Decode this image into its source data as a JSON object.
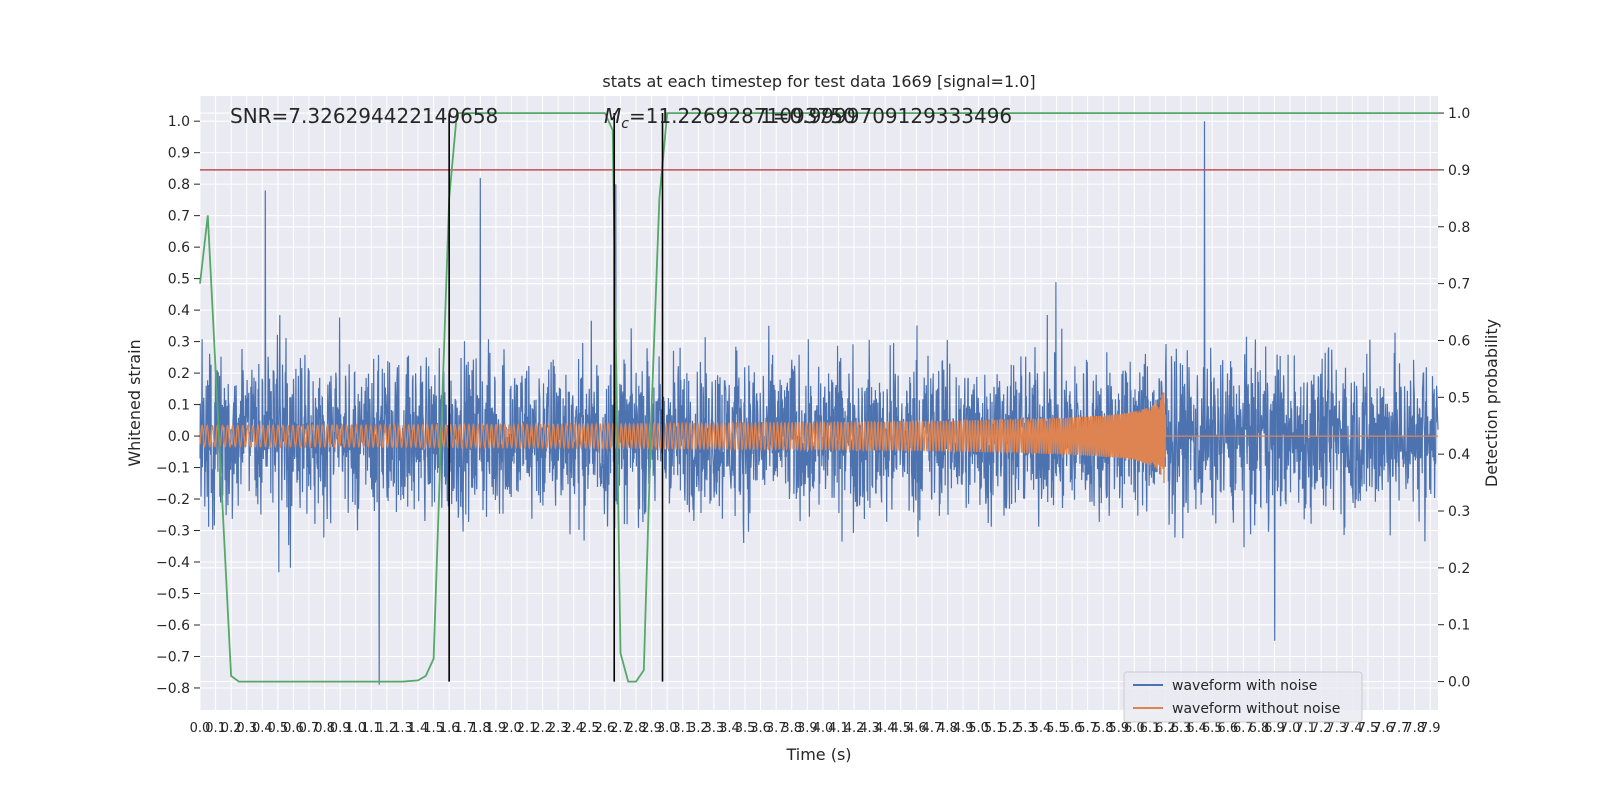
{
  "chart_data": {
    "type": "line",
    "title": "stats at each timestep for test data 1669 [signal=1.0]",
    "xlabel": "Time (s)",
    "ylabel": "Whitened strain",
    "y2label": "Detection probability",
    "xlim": [
      0.0,
      7.95
    ],
    "ylim": [
      -0.87,
      1.08
    ],
    "y2lim": [
      -0.05,
      1.03
    ],
    "x_ticks": [
      "0.0",
      "0.1",
      "0.2",
      "0.3",
      "0.4",
      "0.5",
      "0.6",
      "0.7",
      "0.8",
      "0.9",
      "1.0",
      "1.1",
      "1.2",
      "1.3",
      "1.4",
      "1.5",
      "1.6",
      "1.7",
      "1.8",
      "1.9",
      "2.0",
      "2.1",
      "2.2",
      "2.3",
      "2.4",
      "2.5",
      "2.6",
      "2.7",
      "2.8",
      "2.9",
      "3.0",
      "3.1",
      "3.2",
      "3.3",
      "3.4",
      "3.5",
      "3.6",
      "3.7",
      "3.8",
      "3.9",
      "4.0",
      "4.1",
      "4.2",
      "4.3",
      "4.4",
      "4.5",
      "4.6",
      "4.7",
      "4.8",
      "4.9",
      "5.0",
      "5.1",
      "5.2",
      "5.3",
      "5.4",
      "5.5",
      "5.6",
      "5.7",
      "5.8",
      "5.9",
      "6.0",
      "6.1",
      "6.2",
      "6.3",
      "6.4",
      "6.5",
      "6.6",
      "6.7",
      "6.8",
      "6.9",
      "7.0",
      "7.1",
      "7.2",
      "7.3",
      "7.4",
      "7.5",
      "7.6",
      "7.7",
      "7.8",
      "7.9"
    ],
    "y_ticks": [
      "1.0",
      "0.9",
      "0.8",
      "0.7",
      "0.6",
      "0.5",
      "0.4",
      "0.3",
      "0.2",
      "0.1",
      "0.0",
      "−0.1",
      "−0.2",
      "−0.3",
      "−0.4",
      "−0.5",
      "−0.6",
      "−0.7",
      "−0.8"
    ],
    "y2_ticks": [
      "1.0",
      "0.9",
      "0.8",
      "0.7",
      "0.6",
      "0.5",
      "0.4",
      "0.3",
      "0.2",
      "0.1",
      "0.0"
    ],
    "annotations": {
      "snr": "SNR=7.326294422149658",
      "mc_symbol": "M",
      "mc_sub": "c",
      "mc_value": "=11.22692871093750",
      "overlap": "1=0.9999709129333496"
    },
    "series": [
      {
        "name": "waveform with noise",
        "color": "#4c72b0",
        "envelope_typical": 0.45,
        "peaks": [
          [
            0.42,
            0.78
          ],
          [
            1.15,
            -0.79
          ],
          [
            1.8,
            0.82
          ],
          [
            2.67,
            0.8
          ],
          [
            6.45,
            1.0
          ],
          [
            6.9,
            -0.65
          ]
        ]
      },
      {
        "name": "waveform without noise",
        "color": "#dd8452",
        "merger_time": 6.2,
        "peak_amplitude": 0.21
      }
    ],
    "detection_probability": {
      "color": "#55a868",
      "points": [
        [
          0.0,
          0.7
        ],
        [
          0.05,
          0.82
        ],
        [
          0.2,
          0.01
        ],
        [
          0.25,
          0.0
        ],
        [
          1.3,
          0.0
        ],
        [
          1.4,
          0.002
        ],
        [
          1.45,
          0.01
        ],
        [
          1.5,
          0.04
        ],
        [
          1.55,
          0.45
        ],
        [
          1.6,
          0.85
        ],
        [
          1.65,
          1.0
        ],
        [
          2.6,
          1.0
        ],
        [
          2.65,
          0.97
        ],
        [
          2.7,
          0.05
        ],
        [
          2.75,
          0.0
        ],
        [
          2.8,
          0.0
        ],
        [
          2.85,
          0.02
        ],
        [
          2.9,
          0.48
        ],
        [
          2.95,
          0.85
        ],
        [
          3.0,
          1.0
        ],
        [
          7.95,
          1.0
        ]
      ]
    },
    "threshold": {
      "color": "#c44e52",
      "value": 0.9
    },
    "vertical_markers": [
      1.6,
      2.66,
      2.97
    ],
    "legend": {
      "placement": "lower-right",
      "entries": [
        "waveform with noise",
        "waveform without noise"
      ]
    },
    "grid": true
  }
}
